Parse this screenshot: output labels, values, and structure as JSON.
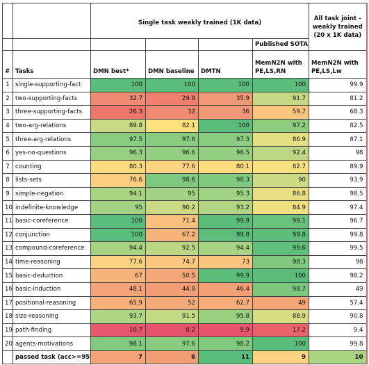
{
  "header": {
    "group_single": "Single task weakly trained (1K data)",
    "group_joint": "All task joint - weakly trained (20 x 1K data)",
    "group_published": "Published SOTA",
    "col_num": "#",
    "col_tasks": "Tasks",
    "col_dmn_best": "DMN best*",
    "col_dmn_baseline": "DMN baseline",
    "col_dmtn": "DMTN",
    "col_memn2n": "MemN2N with PE,LS,RN",
    "col_memn2n_joint": "MemN2N with PE,LS,Lw"
  },
  "rows": [
    {
      "num": "1",
      "task": "single-supporting-fact",
      "v": [
        "100",
        "100",
        "100",
        "100",
        "99.9"
      ],
      "c": [
        "#5bbd7b",
        "#5bbd7b",
        "#5bbd7b",
        "#5bbd7b",
        "#ffffff"
      ]
    },
    {
      "num": "2",
      "task": "two-supporting-facts",
      "v": [
        "32.7",
        "29.9",
        "35.9",
        "91.7",
        "81.2"
      ],
      "c": [
        "#f08a73",
        "#ef7f6f",
        "#f19876",
        "#c5d985",
        "#ffffff"
      ]
    },
    {
      "num": "3",
      "task": "three-supporting-facts",
      "v": [
        "26.3",
        "32",
        "36",
        "59.7",
        "68.3"
      ],
      "c": [
        "#ed7569",
        "#f08a73",
        "#f19876",
        "#fac67e",
        "#ffffff"
      ]
    },
    {
      "num": "4",
      "task": "two-arg-relations",
      "v": [
        "89.8",
        "82.1",
        "100",
        "97.2",
        "82.5"
      ],
      "c": [
        "#c9da84",
        "#fde17f",
        "#5bbd7b",
        "#8ccd80",
        "#ffffff"
      ]
    },
    {
      "num": "5",
      "task": "three-arg-relations",
      "v": [
        "97.5",
        "97.6",
        "97.3",
        "86.9",
        "87.1"
      ],
      "c": [
        "#88cc80",
        "#88cc80",
        "#8bcd80",
        "#e6df82",
        "#ffffff"
      ]
    },
    {
      "num": "6",
      "task": "yes-no-questions",
      "v": [
        "96.3",
        "96.6",
        "96.5",
        "92.4",
        "98"
      ],
      "c": [
        "#96d181",
        "#93d081",
        "#94d081",
        "#bdd784",
        "#ffffff"
      ]
    },
    {
      "num": "7",
      "task": "counting",
      "v": [
        "80.3",
        "77.6",
        "80.1",
        "82.7",
        "89.9"
      ],
      "c": [
        "#fddb7f",
        "#fbd27f",
        "#fddb7f",
        "#f9e181",
        "#ffffff"
      ]
    },
    {
      "num": "8",
      "task": "lists-sets",
      "v": [
        "76.6",
        "98.6",
        "98.3",
        "90",
        "93.9"
      ],
      "c": [
        "#fbcf7f",
        "#7dc97f",
        "#80ca7f",
        "#cedb84",
        "#ffffff"
      ]
    },
    {
      "num": "9",
      "task": "simple-negation",
      "v": [
        "94.1",
        "95",
        "95.3",
        "86.8",
        "98.5"
      ],
      "c": [
        "#a9d482",
        "#a2d382",
        "#9fd282",
        "#e8df82",
        "#ffffff"
      ]
    },
    {
      "num": "10",
      "task": "indefinite-knowledge",
      "v": [
        "95",
        "90.2",
        "93.2",
        "84.9",
        "97.4"
      ],
      "c": [
        "#a2d382",
        "#cbda84",
        "#b2d583",
        "#f1e082",
        "#ffffff"
      ]
    },
    {
      "num": "11",
      "task": "basic-coreference",
      "v": [
        "100",
        "71.4",
        "99.9",
        "99.1",
        "96.7"
      ],
      "c": [
        "#5bbd7b",
        "#f9bf7c",
        "#5cbd7b",
        "#6ac37d",
        "#ffffff"
      ]
    },
    {
      "num": "12",
      "task": "conjunction",
      "v": [
        "100",
        "67.2",
        "99.8",
        "99.8",
        "99.8"
      ],
      "c": [
        "#5bbd7b",
        "#f7b47a",
        "#5dbe7b",
        "#5dbe7b",
        "#ffffff"
      ]
    },
    {
      "num": "13",
      "task": "compound-coreference",
      "v": [
        "94.4",
        "92.5",
        "94.4",
        "99.6",
        "99.5"
      ],
      "c": [
        "#a6d482",
        "#bbd784",
        "#a6d482",
        "#60bf7c",
        "#ffffff"
      ]
    },
    {
      "num": "14",
      "task": "time-reasoning",
      "v": [
        "77.6",
        "74.7",
        "73",
        "98.3",
        "98"
      ],
      "c": [
        "#fbd27f",
        "#fac87e",
        "#f9c47d",
        "#80ca7f",
        "#ffffff"
      ]
    },
    {
      "num": "15",
      "task": "basic-deduction",
      "v": [
        "67",
        "50.5",
        "99.9",
        "100",
        "98.2"
      ],
      "c": [
        "#f7b47a",
        "#f4a778",
        "#5cbd7b",
        "#5bbd7b",
        "#ffffff"
      ]
    },
    {
      "num": "16",
      "task": "basic-induction",
      "v": [
        "48.1",
        "44.8",
        "46.4",
        "98.7",
        "49"
      ],
      "c": [
        "#f3a377",
        "#f29d76",
        "#f3a077",
        "#7cc87f",
        "#ffffff"
      ]
    },
    {
      "num": "17",
      "task": "positional-reasoning",
      "v": [
        "65.9",
        "52",
        "62.7",
        "49",
        "57.4"
      ],
      "c": [
        "#f6b17a",
        "#f4aa78",
        "#f5ae79",
        "#f3a577",
        "#ffffff"
      ]
    },
    {
      "num": "18",
      "task": "size-reasoning",
      "v": [
        "93.7",
        "91.5",
        "95.8",
        "88.9",
        "90.8"
      ],
      "c": [
        "#add583",
        "#c4d984",
        "#9ad181",
        "#d8dc83",
        "#ffffff"
      ]
    },
    {
      "num": "19",
      "task": "path-finding",
      "v": [
        "10.7",
        "8.2",
        "9.9",
        "17.2",
        "9.4"
      ],
      "c": [
        "#e8566c",
        "#e7526b",
        "#e8546c",
        "#ea636a",
        "#ffffff"
      ]
    },
    {
      "num": "20",
      "task": "agents-motivations",
      "v": [
        "98.1",
        "97.6",
        "98.2",
        "100",
        "99.8"
      ],
      "c": [
        "#82ca80",
        "#88cc80",
        "#80ca7f",
        "#5bbd7b",
        "#ffffff"
      ]
    }
  ],
  "footer": {
    "label": "passed task (acc>=95%)",
    "v": [
      "7",
      "6",
      "11",
      "9",
      "10"
    ],
    "c": [
      "#f3a377",
      "#f29d76",
      "#5bbd7b",
      "#fbd27f",
      "#a9d482"
    ]
  }
}
